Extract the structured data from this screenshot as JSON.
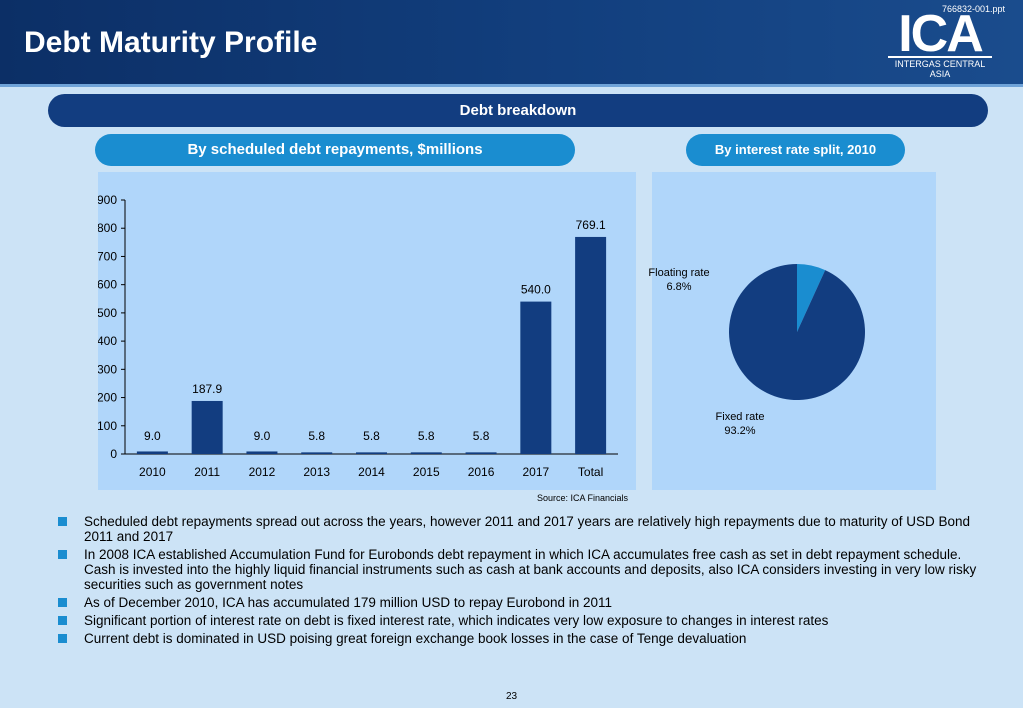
{
  "doc_ref": "766832-001.ppt",
  "title": "Debt Maturity Profile",
  "logo": {
    "main": "ICA",
    "sub": "INTERGAS CENTRAL ASIA"
  },
  "banner": "Debt breakdown",
  "left_header": "By scheduled debt repayments, $millions",
  "right_header": "By interest rate split, 2010",
  "source": "Source: ICA Financials",
  "page_number": "23",
  "colors": {
    "bar": "#123d80",
    "pie_fixed": "#123d80",
    "pie_floating": "#1a8dd0"
  },
  "chart_data": [
    {
      "type": "bar",
      "categories": [
        "2010",
        "2011",
        "2012",
        "2013",
        "2014",
        "2015",
        "2016",
        "2017",
        "Total"
      ],
      "values": [
        9.0,
        187.9,
        9.0,
        5.8,
        5.8,
        5.8,
        5.8,
        540.0,
        769.1
      ],
      "value_labels": [
        "9.0",
        "187.9",
        "9.0",
        "5.8",
        "5.8",
        "5.8",
        "5.8",
        "540.0",
        "769.1"
      ],
      "yticks": [
        "0",
        "100",
        "200",
        "300",
        "400",
        "500",
        "600",
        "700",
        "800",
        "900"
      ],
      "ylim": [
        0,
        900
      ],
      "title": "",
      "xlabel": "",
      "ylabel": "",
      "grid": false
    },
    {
      "type": "pie",
      "slices": [
        {
          "name": "Floating rate",
          "value": 6.8,
          "label": "6.8%"
        },
        {
          "name": "Fixed rate",
          "value": 93.2,
          "label": "93.2%"
        }
      ]
    }
  ],
  "bullets": [
    "Scheduled debt repayments spread out across the years, however 2011 and 2017 years are relatively high repayments due to maturity of USD Bond 2011 and 2017",
    "In 2008 ICA established Accumulation Fund for Eurobonds debt repayment in which ICA accumulates free cash as set in debt repayment schedule. Cash is invested into the highly liquid financial instruments such as cash at bank accounts and deposits, also ICA considers investing in very low risky securities such as government notes",
    "As of December 2010, ICA has accumulated 179 million USD to repay Eurobond in 2011",
    "Significant portion of interest rate on debt is fixed interest rate, which indicates very low exposure to changes in interest rates",
    "Current debt is dominated in USD poising great foreign exchange book losses in the case of Tenge devaluation"
  ]
}
